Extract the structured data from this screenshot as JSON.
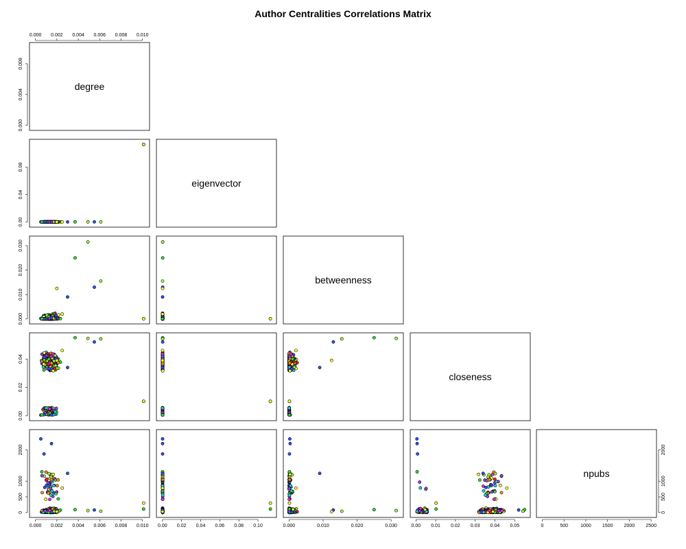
{
  "chart_data": {
    "type": "scatter",
    "title": "Author Centralities Correlations Matrix",
    "layout": "pairs lower-triangle",
    "variables": [
      "degree",
      "eigenvector",
      "betweenness",
      "closeness",
      "npubs"
    ],
    "axis_ticks": {
      "degree": [
        "0.000",
        "0.002",
        "0.004",
        "0.006",
        "0.008",
        "0.010"
      ],
      "eigenvector": [
        "0.00",
        "0.02",
        "0.04",
        "0.06",
        "0.08",
        "0.10"
      ],
      "betweenness": [
        "0.000",
        "0.010",
        "0.020",
        "0.030"
      ],
      "closeness": [
        "0.00",
        "0.01",
        "0.02",
        "0.03",
        "0.04",
        "0.05"
      ],
      "npubs": [
        "0",
        "500",
        "1000",
        "1500",
        "2000",
        "2500"
      ]
    },
    "degree_diag_ticks": [
      "0.000",
      "0.004",
      "0.008"
    ],
    "point_colors": [
      "#ff2020",
      "#30e030",
      "#3050ff",
      "#ffff30",
      "#e030e0",
      "#20d0d0",
      "#ff9020",
      "#9040ff",
      "#a0ff40"
    ],
    "notable_points": [
      {
        "x_var": "degree",
        "y_var": "eigenvector",
        "x": 0.0101,
        "y": 0.113
      },
      {
        "x_var": "degree",
        "y_var": "betweenness",
        "x": 0.0049,
        "y": 0.0315
      },
      {
        "x_var": "degree",
        "y_var": "npubs",
        "x": 0.0005,
        "y": 2350
      },
      {
        "x_var": "betweenness",
        "y_var": "closeness",
        "x": 0.032,
        "y": 0.055
      },
      {
        "x_var": "closeness",
        "y_var": "npubs",
        "x": 0.034,
        "y": 1250
      }
    ],
    "grid": false,
    "legend": "none"
  }
}
